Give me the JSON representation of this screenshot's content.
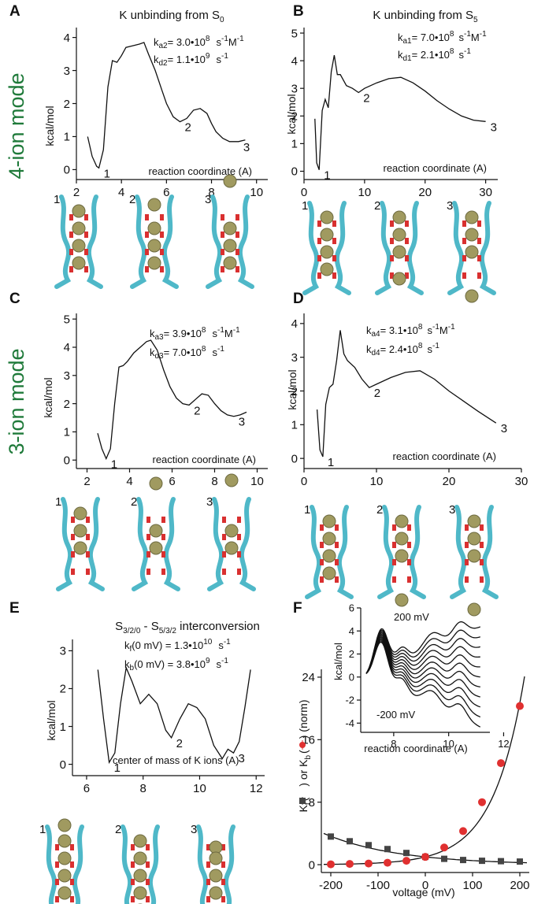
{
  "colors": {
    "mode_label": "#1f7a3a",
    "kf_marker": "#e03030",
    "kb_marker": "#444444",
    "ion": "#a09a60",
    "helix": "#4fb8c8",
    "oxygen": "#d93030"
  },
  "row_labels": {
    "top": "4-ion mode",
    "middle": "3-ion mode"
  },
  "panels": {
    "A": {
      "letter": "A",
      "title_main": "K unbinding from S",
      "title_sub": "0",
      "rate1_pre": "k",
      "rate1_sub": "a2",
      "rate1_val": "= 3.0•10",
      "rate1_exp": "8",
      "rate1_unit": "s",
      "rate1_unit_sup": "-1",
      "rate1_unit2": "M",
      "rate1_unit2_sup": "-1",
      "rate2_pre": "k",
      "rate2_sub": "d2",
      "rate2_val": "= 1.1•10",
      "rate2_exp": "9",
      "rate2_unit": "s",
      "rate2_unit_sup": "-1",
      "ylabel": "kcal/mol",
      "xlabel": "reaction coordinate (A)",
      "snap_labels": [
        "1",
        "2",
        "3"
      ]
    },
    "B": {
      "letter": "B",
      "title_main": "K unbinding from S",
      "title_sub": "5",
      "rate1_pre": "k",
      "rate1_sub": "a1",
      "rate1_val": "= 7.0•10",
      "rate1_exp": "8",
      "rate1_unit": "s",
      "rate1_unit_sup": "-1",
      "rate1_unit2": "M",
      "rate1_unit2_sup": "-1",
      "rate2_pre": "k",
      "rate2_sub": "d1",
      "rate2_val": "= 2.1•10",
      "rate2_exp": "8",
      "rate2_unit": "s",
      "rate2_unit_sup": "-1",
      "ylabel": "kcal/mol",
      "xlabel": "reaction coordinate (A)",
      "snap_labels": [
        "1",
        "2",
        "3"
      ]
    },
    "C": {
      "letter": "C",
      "rate1_pre": "k",
      "rate1_sub": "a3",
      "rate1_val": "= 3.9•10",
      "rate1_exp": "8",
      "rate1_unit": "s",
      "rate1_unit_sup": "-1",
      "rate1_unit2": "M",
      "rate1_unit2_sup": "-1",
      "rate2_pre": "k",
      "rate2_sub": "d3",
      "rate2_val": "= 7.0•10",
      "rate2_exp": "8",
      "rate2_unit": "s",
      "rate2_unit_sup": "-1",
      "ylabel": "kcal/mol",
      "xlabel": "reaction coordinate (A)",
      "snap_labels": [
        "1",
        "2",
        "3"
      ]
    },
    "D": {
      "letter": "D",
      "rate1_pre": "k",
      "rate1_sub": "a4",
      "rate1_val": "= 3.1•10",
      "rate1_exp": "8",
      "rate1_unit": "s",
      "rate1_unit_sup": "-1",
      "rate1_unit2": "M",
      "rate1_unit2_sup": "-1",
      "rate2_pre": "k",
      "rate2_sub": "d4",
      "rate2_val": "= 2.4•10",
      "rate2_exp": "8",
      "rate2_unit": "s",
      "rate2_unit_sup": "-1",
      "ylabel": "kcal/mol",
      "xlabel": "reaction coordinate (A)",
      "snap_labels": [
        "1",
        "2",
        "3"
      ]
    },
    "E": {
      "letter": "E",
      "title_s1": "S",
      "title_s1_sub": "3/2/0",
      "title_mid": " - S",
      "title_s2_sub": "5/3/2",
      "title_end": " interconversion",
      "rate1_pre": "k",
      "rate1_sub": "f",
      "rate1_val": "(0 mV) = 1.3•10",
      "rate1_exp": "10",
      "rate1_unit": "s",
      "rate1_unit_sup": "-1",
      "rate2_pre": "k",
      "rate2_sub": "b",
      "rate2_val": "(0 mV) = 3.8•10",
      "rate2_exp": "9",
      "rate2_unit": "s",
      "rate2_unit_sup": "-1",
      "ylabel": "kcal/mol",
      "xlabel": "center of mass of  K ions (A)",
      "snap_labels": [
        "1",
        "2",
        "3"
      ]
    },
    "F": {
      "letter": "F",
      "ylabel_pre": "K",
      "ylabel_sub1": "f",
      "ylabel_mid": "(",
      "ylabel_mid2": ") or K",
      "ylabel_sub2": "b",
      "ylabel_mid3": "(",
      "ylabel_end": ") (norm)",
      "xlabel": "voltage (mV)",
      "inset_ylabel": "kcal/mol",
      "inset_xlabel": "reaction coordinate (A)",
      "inset_top": "200 mV",
      "inset_bottom": "-200 mV"
    }
  },
  "chart_data": [
    {
      "id": "A",
      "type": "line",
      "xlim": [
        2,
        10.5
      ],
      "ylim": [
        -0.3,
        4.3
      ],
      "xticks": [
        2,
        4,
        6,
        8,
        10
      ],
      "yticks": [
        0,
        1,
        2,
        3,
        4
      ],
      "x": [
        2.5,
        2.7,
        2.9,
        3.0,
        3.2,
        3.4,
        3.6,
        3.8,
        4.0,
        4.2,
        4.5,
        4.8,
        5.0,
        5.2,
        5.5,
        5.8,
        6.0,
        6.3,
        6.6,
        6.9,
        7.2,
        7.5,
        7.8,
        8.0,
        8.2,
        8.5,
        8.8,
        9.2,
        9.5
      ],
      "y": [
        1.0,
        0.4,
        0.1,
        0.05,
        0.6,
        2.5,
        3.3,
        3.25,
        3.45,
        3.7,
        3.75,
        3.8,
        3.85,
        3.5,
        3.0,
        2.4,
        2.0,
        1.6,
        1.45,
        1.55,
        1.8,
        1.85,
        1.7,
        1.4,
        1.15,
        0.95,
        0.85,
        0.85,
        0.9
      ],
      "points": [
        {
          "label": "1",
          "x": 3.0,
          "y": 0.05
        },
        {
          "label": "2",
          "x": 6.6,
          "y": 1.45
        },
        {
          "label": "3",
          "x": 9.2,
          "y": 0.85
        }
      ]
    },
    {
      "id": "B",
      "type": "line",
      "xlim": [
        0,
        32
      ],
      "ylim": [
        -0.3,
        5.2
      ],
      "xticks": [
        0,
        10,
        20,
        30
      ],
      "yticks": [
        0,
        1,
        2,
        3,
        4,
        5
      ],
      "x": [
        1.8,
        2.1,
        2.5,
        3.0,
        3.5,
        4.0,
        4.5,
        5.0,
        5.5,
        6.0,
        7.0,
        8.0,
        9.0,
        10,
        12,
        14,
        16,
        18,
        20,
        22,
        24,
        26,
        28,
        30
      ],
      "y": [
        1.9,
        0.3,
        0.05,
        2.2,
        2.6,
        2.3,
        3.6,
        4.2,
        3.5,
        3.5,
        3.1,
        3.0,
        2.85,
        3.0,
        3.2,
        3.35,
        3.4,
        3.2,
        2.9,
        2.55,
        2.25,
        2.0,
        1.85,
        1.8
      ],
      "points": [
        {
          "label": "1",
          "x": 2.5,
          "y": 0.05
        },
        {
          "label": "2",
          "x": 9.0,
          "y": 2.85
        },
        {
          "label": "3",
          "x": 30,
          "y": 1.8
        }
      ]
    },
    {
      "id": "C",
      "type": "line",
      "xlim": [
        1.5,
        10.5
      ],
      "ylim": [
        -0.3,
        5.2
      ],
      "xticks": [
        2,
        4,
        6,
        8,
        10
      ],
      "yticks": [
        0,
        1,
        2,
        3,
        4,
        5
      ],
      "x": [
        2.5,
        2.7,
        2.9,
        3.1,
        3.3,
        3.5,
        3.7,
        3.9,
        4.2,
        4.5,
        4.8,
        5.0,
        5.3,
        5.6,
        5.9,
        6.2,
        6.5,
        6.8,
        7.1,
        7.4,
        7.7,
        8.0,
        8.3,
        8.6,
        8.9,
        9.2,
        9.5
      ],
      "y": [
        0.95,
        0.4,
        0.05,
        0.4,
        2.0,
        3.3,
        3.35,
        3.5,
        3.8,
        4.0,
        4.2,
        4.25,
        3.9,
        3.2,
        2.6,
        2.2,
        2.0,
        1.95,
        2.15,
        2.35,
        2.3,
        2.0,
        1.75,
        1.6,
        1.55,
        1.6,
        1.7
      ],
      "points": [
        {
          "label": "1",
          "x": 2.9,
          "y": 0.05
        },
        {
          "label": "2",
          "x": 6.8,
          "y": 1.95
        },
        {
          "label": "3",
          "x": 8.9,
          "y": 1.55
        }
      ]
    },
    {
      "id": "D",
      "type": "line",
      "xlim": [
        0,
        30
      ],
      "ylim": [
        -0.3,
        4.3
      ],
      "xticks": [
        0,
        10,
        20,
        30
      ],
      "yticks": [
        0,
        1,
        2,
        3,
        4
      ],
      "x": [
        1.8,
        2.2,
        2.6,
        3.0,
        3.5,
        4.0,
        4.5,
        5.0,
        5.5,
        6.0,
        7.0,
        8.0,
        9.0,
        10,
        12,
        14,
        16,
        18,
        20,
        22,
        24,
        26.5
      ],
      "y": [
        1.45,
        0.25,
        0.05,
        1.6,
        2.1,
        2.2,
        2.9,
        3.8,
        3.1,
        2.9,
        2.7,
        2.35,
        2.1,
        2.2,
        2.4,
        2.55,
        2.6,
        2.35,
        2.0,
        1.7,
        1.4,
        1.05
      ],
      "points": [
        {
          "label": "1",
          "x": 2.6,
          "y": 0.05
        },
        {
          "label": "2",
          "x": 9.0,
          "y": 2.1
        },
        {
          "label": "3",
          "x": 26.5,
          "y": 1.05
        }
      ]
    },
    {
      "id": "E",
      "type": "line",
      "xlim": [
        5.5,
        12.3
      ],
      "ylim": [
        -0.3,
        3.3
      ],
      "xticks": [
        6,
        8,
        10,
        12
      ],
      "yticks": [
        0,
        1,
        2,
        3
      ],
      "x": [
        6.4,
        6.6,
        6.8,
        7.0,
        7.2,
        7.4,
        7.6,
        7.9,
        8.2,
        8.5,
        8.8,
        9.0,
        9.3,
        9.6,
        9.9,
        10.2,
        10.5,
        10.8,
        11.0,
        11.2,
        11.4,
        11.6,
        11.8
      ],
      "y": [
        2.5,
        1.2,
        0.05,
        0.3,
        1.6,
        2.55,
        2.2,
        1.6,
        1.85,
        1.6,
        0.9,
        0.7,
        1.2,
        1.6,
        1.5,
        1.2,
        0.5,
        0.15,
        0.4,
        0.3,
        0.6,
        1.5,
        2.5
      ],
      "points": [
        {
          "label": "1",
          "x": 6.8,
          "y": 0.05
        },
        {
          "label": "2",
          "x": 9.0,
          "y": 0.7
        },
        {
          "label": "3",
          "x": 11.2,
          "y": 0.3
        }
      ]
    },
    {
      "id": "F",
      "type": "scatter",
      "xlim": [
        -220,
        220
      ],
      "ylim": [
        -1,
        25
      ],
      "xticks": [
        -200,
        -100,
        0,
        100,
        200
      ],
      "yticks": [
        0,
        8,
        16,
        24
      ],
      "series": [
        {
          "name": "Kf",
          "color": "#e03030",
          "marker": "circle",
          "x": [
            -200,
            -160,
            -120,
            -80,
            -40,
            0,
            40,
            80,
            120,
            160,
            200
          ],
          "y": [
            0.05,
            0.1,
            0.15,
            0.25,
            0.5,
            1.0,
            2.2,
            4.3,
            8.0,
            13.0,
            20.3
          ]
        },
        {
          "name": "Kb",
          "color": "#444444",
          "marker": "square",
          "x": [
            -200,
            -160,
            -120,
            -80,
            -40,
            0,
            40,
            80,
            120,
            160,
            200
          ],
          "y": [
            3.6,
            3.0,
            2.5,
            2.0,
            1.5,
            1.0,
            0.75,
            0.6,
            0.5,
            0.45,
            0.4
          ]
        }
      ],
      "inset": {
        "type": "line",
        "xlim": [
          6.8,
          11.5
        ],
        "ylim": [
          -4.8,
          6.0
        ],
        "xticks": [
          8,
          10,
          12
        ],
        "yticks": [
          -4,
          -2,
          0,
          2,
          4,
          6
        ],
        "curves": 11,
        "xlabel": "reaction coordinate (A)",
        "ylabel": "kcal/mol"
      }
    }
  ]
}
